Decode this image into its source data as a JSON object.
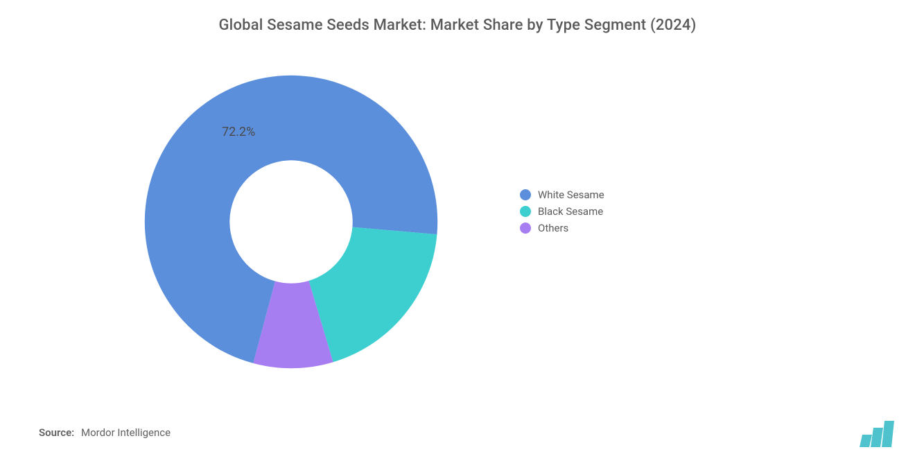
{
  "title": "Global Sesame Seeds Market: Market Share by Type Segment (2024)",
  "chart": {
    "type": "donut",
    "inner_radius_pct": 42,
    "outer_radius_pct": 100,
    "background_color": "#ffffff",
    "start_angle_deg": 105,
    "segments": [
      {
        "label": "White Sesame",
        "value": 72.2,
        "color": "#5b8fdc",
        "show_pct": true,
        "pct_text": "72.2%"
      },
      {
        "label": "Black Sesame",
        "value": 19.0,
        "color": "#3dcfcf",
        "show_pct": false
      },
      {
        "label": "Others",
        "value": 8.8,
        "color": "#a77df2",
        "show_pct": false
      }
    ],
    "pct_label_color": "#4a4a4a",
    "pct_label_fontsize": 18
  },
  "legend": {
    "items": [
      {
        "label": "White Sesame",
        "color": "#5b8fdc"
      },
      {
        "label": "Black Sesame",
        "color": "#3dcfcf"
      },
      {
        "label": "Others",
        "color": "#a77df2"
      }
    ],
    "fontsize": 15,
    "text_color": "#5a5a5a"
  },
  "source": {
    "label": "Source:",
    "value": "Mordor Intelligence"
  },
  "brand": {
    "name": "mordor-logo",
    "bar_color": "#2fb9c5",
    "bar_count": 3
  }
}
